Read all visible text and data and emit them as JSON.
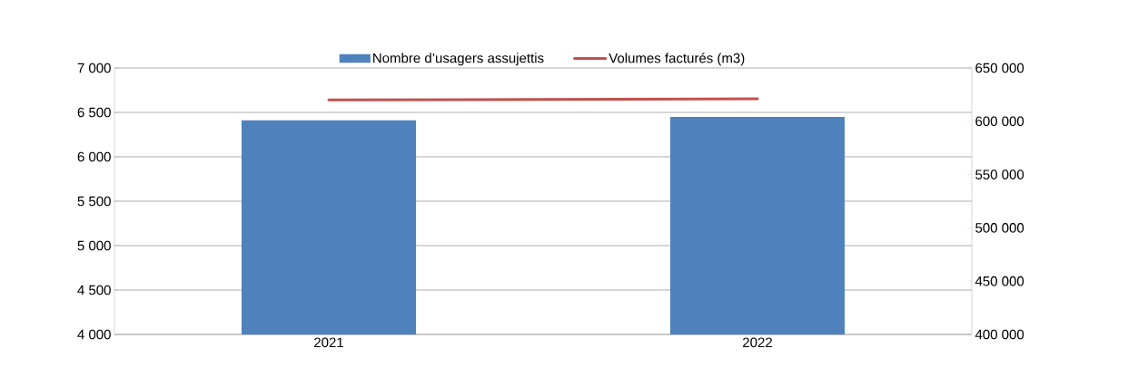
{
  "chart_data": {
    "type": "bar",
    "categories": [
      "2021",
      "2022"
    ],
    "series": [
      {
        "name": "Nombre d’usagers assujettis",
        "color": "#4f81bd",
        "values": [
          6410,
          6450
        ]
      },
      {
        "name": "Volumes facturés (m3)",
        "color": "#c0504d",
        "type": "line",
        "axis": "y2",
        "values": [
          620000,
          621000
        ]
      }
    ],
    "ylim": [
      4000,
      7000
    ],
    "yticks": [
      {
        "value": 4000,
        "label": "4 000"
      },
      {
        "value": 4500,
        "label": "4 500"
      },
      {
        "value": 5000,
        "label": "5 000"
      },
      {
        "value": 5500,
        "label": "5 500"
      },
      {
        "value": 6000,
        "label": "6 000"
      },
      {
        "value": 6500,
        "label": "6 500"
      },
      {
        "value": 7000,
        "label": "7 000"
      }
    ],
    "y2lim": [
      400000,
      650000
    ],
    "y2ticks": [
      {
        "value": 400000,
        "label": "400 000"
      },
      {
        "value": 450000,
        "label": "450 000"
      },
      {
        "value": 500000,
        "label": "500 000"
      },
      {
        "value": 550000,
        "label": "550 000"
      },
      {
        "value": 600000,
        "label": "600 000"
      },
      {
        "value": 650000,
        "label": "650 000"
      }
    ],
    "grid": "y",
    "legend": "top"
  }
}
